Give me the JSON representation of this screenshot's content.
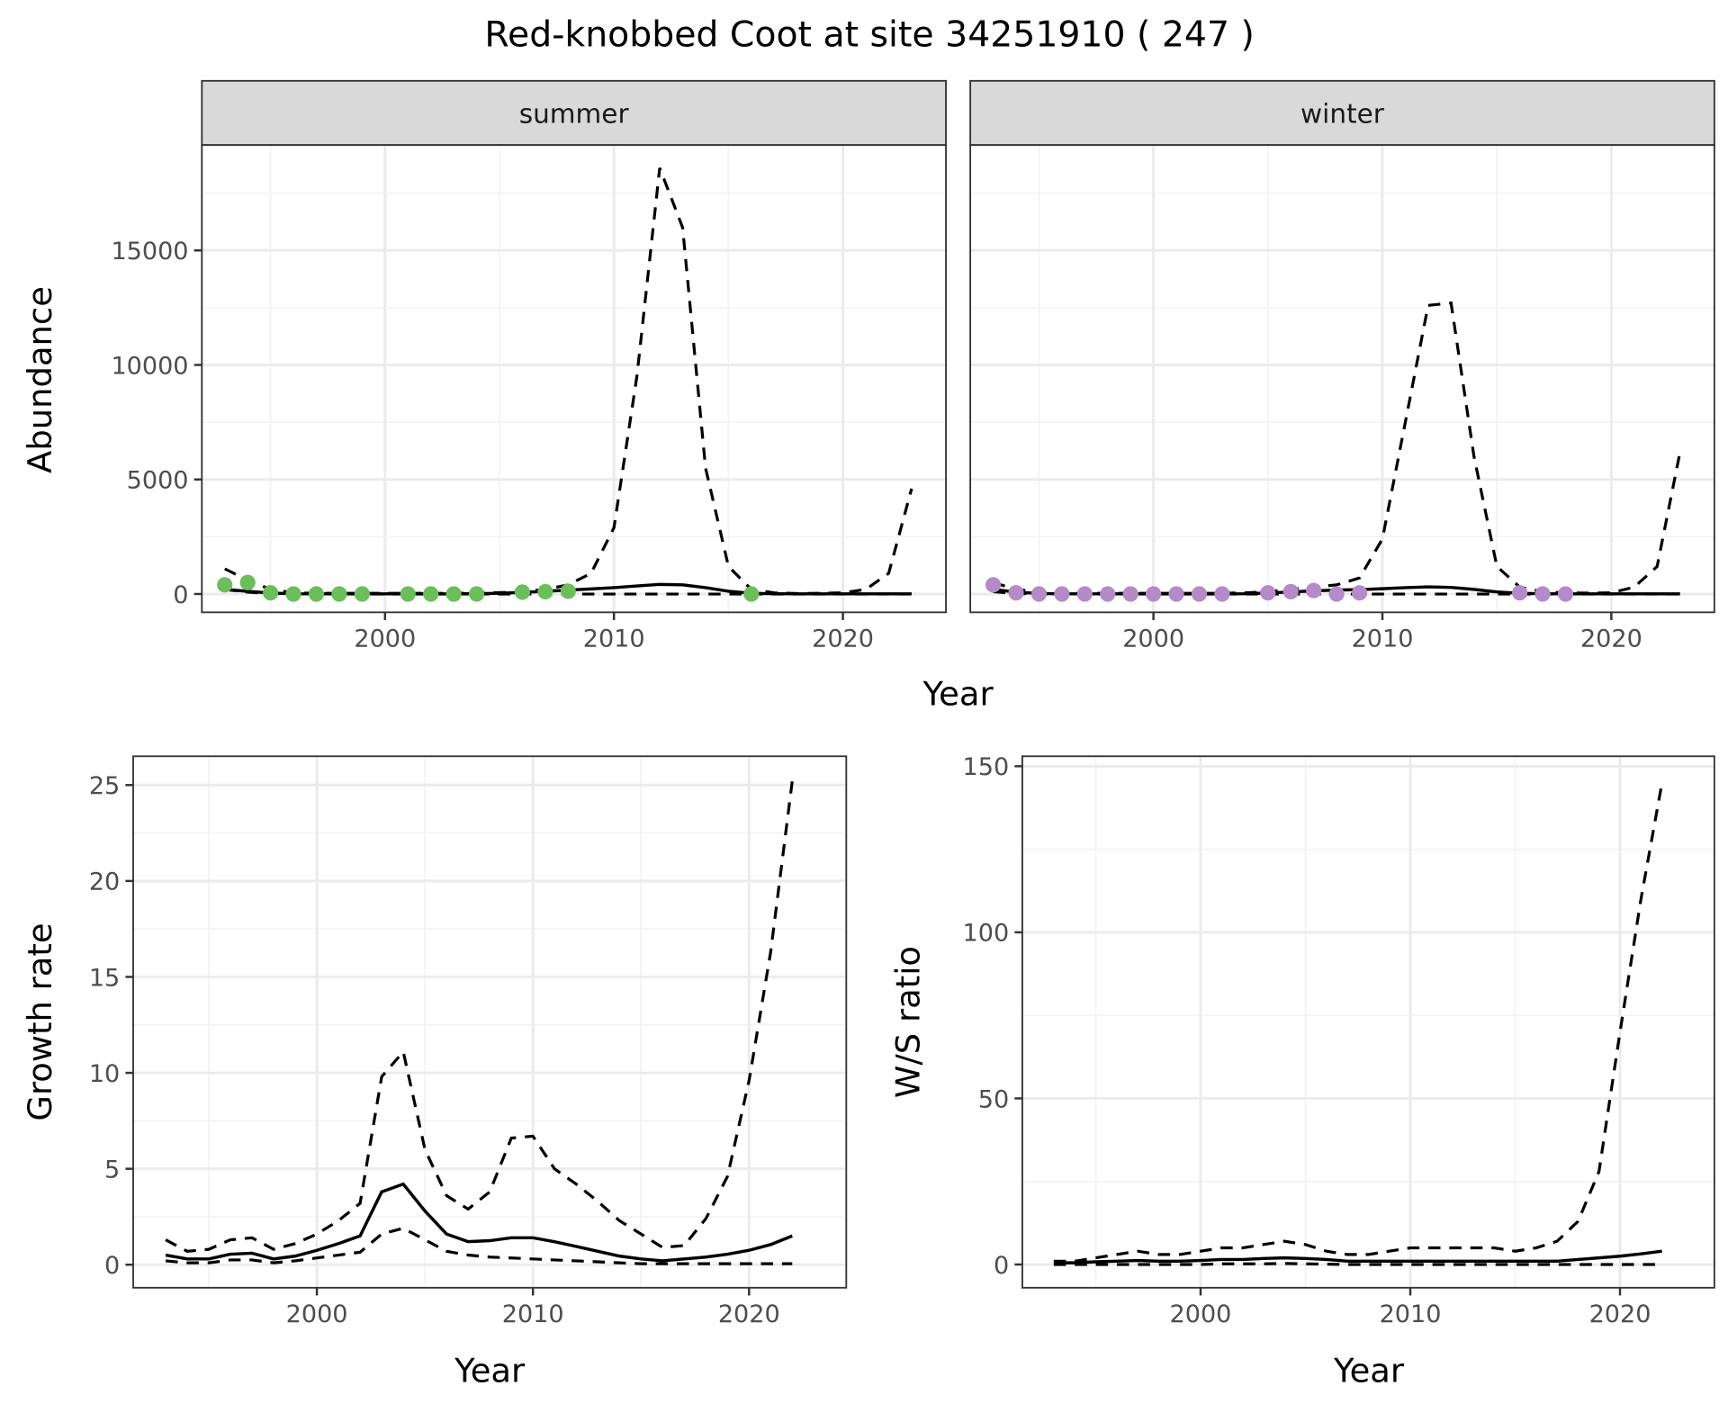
{
  "title": "Red-knobbed Coot at site 34251910 ( 247 )",
  "chart_data": [
    {
      "id": "abundance",
      "type": "line",
      "facets": [
        "summer",
        "winter"
      ],
      "xlabel": "Year",
      "ylabel": "Abundance",
      "xlim": [
        1992,
        2024.5
      ],
      "ylim": [
        -800,
        19600
      ],
      "xticks": [
        2000,
        2010,
        2020
      ],
      "yticks": [
        0,
        5000,
        10000,
        15000
      ],
      "panels": {
        "summer": {
          "point_color": "#6abf5a",
          "points": {
            "x": [
              1993,
              1994,
              1995,
              1996,
              1997,
              1998,
              1999,
              2001,
              2002,
              2003,
              2004,
              2006,
              2007,
              2008,
              2016
            ],
            "y": [
              400,
              500,
              50,
              0,
              0,
              0,
              0,
              0,
              0,
              0,
              0,
              80,
              100,
              120,
              0
            ]
          },
          "x": [
            1993,
            1994,
            1995,
            1996,
            1997,
            1998,
            1999,
            2000,
            2001,
            2002,
            2003,
            2004,
            2005,
            2006,
            2007,
            2008,
            2009,
            2010,
            2011,
            2012,
            2013,
            2014,
            2015,
            2016,
            2017,
            2018,
            2019,
            2020,
            2021,
            2022,
            2023
          ],
          "fit": [
            200,
            120,
            40,
            10,
            5,
            5,
            5,
            5,
            5,
            5,
            5,
            10,
            30,
            70,
            120,
            170,
            220,
            280,
            350,
            420,
            400,
            280,
            120,
            30,
            10,
            5,
            5,
            5,
            5,
            5,
            5
          ],
          "upper": [
            1100,
            600,
            200,
            50,
            30,
            30,
            30,
            30,
            30,
            30,
            30,
            40,
            60,
            100,
            200,
            400,
            900,
            2900,
            9500,
            18600,
            16000,
            5500,
            1200,
            200,
            50,
            20,
            30,
            50,
            200,
            900,
            4600
          ],
          "lower": [
            200,
            80,
            20,
            5,
            0,
            0,
            0,
            0,
            0,
            0,
            0,
            0,
            0,
            0,
            0,
            0,
            0,
            0,
            0,
            0,
            0,
            0,
            0,
            0,
            0,
            0,
            0,
            0,
            0,
            0,
            0
          ]
        },
        "winter": {
          "point_color": "#b48ac8",
          "points": {
            "x": [
              1993,
              1994,
              1995,
              1996,
              1997,
              1998,
              1999,
              2000,
              2001,
              2002,
              2003,
              2005,
              2006,
              2007,
              2008,
              2009,
              2016,
              2017,
              2018
            ],
            "y": [
              400,
              50,
              0,
              0,
              0,
              0,
              0,
              0,
              0,
              0,
              0,
              50,
              100,
              150,
              0,
              50,
              50,
              0,
              0
            ]
          },
          "x": [
            1993,
            1994,
            1995,
            1996,
            1997,
            1998,
            1999,
            2000,
            2001,
            2002,
            2003,
            2004,
            2005,
            2006,
            2007,
            2008,
            2009,
            2010,
            2011,
            2012,
            2013,
            2014,
            2015,
            2016,
            2017,
            2018,
            2019,
            2020,
            2021,
            2022,
            2023
          ],
          "fit": [
            200,
            80,
            20,
            5,
            5,
            5,
            5,
            5,
            5,
            5,
            5,
            10,
            40,
            90,
            140,
            170,
            190,
            230,
            280,
            310,
            290,
            200,
            90,
            30,
            10,
            5,
            5,
            5,
            5,
            5,
            5
          ],
          "upper": [
            500,
            200,
            80,
            30,
            30,
            30,
            30,
            30,
            30,
            30,
            30,
            50,
            100,
            200,
            300,
            400,
            700,
            2400,
            7500,
            12600,
            12700,
            6000,
            1200,
            300,
            100,
            50,
            40,
            50,
            300,
            1200,
            6200
          ],
          "lower": [
            100,
            20,
            5,
            0,
            0,
            0,
            0,
            0,
            0,
            0,
            0,
            0,
            0,
            0,
            0,
            0,
            0,
            0,
            0,
            0,
            0,
            0,
            0,
            0,
            0,
            0,
            0,
            0,
            0,
            0,
            0
          ]
        }
      }
    },
    {
      "id": "growth",
      "type": "line",
      "xlabel": "Year",
      "ylabel": "Growth rate",
      "xlim": [
        1991.5,
        2024.5
      ],
      "ylim": [
        -1.2,
        26.5
      ],
      "xticks": [
        2000,
        2010,
        2020
      ],
      "yticks": [
        0,
        5,
        10,
        15,
        20,
        25
      ],
      "x": [
        1993,
        1994,
        1995,
        1996,
        1997,
        1998,
        1999,
        2000,
        2001,
        2002,
        2003,
        2004,
        2005,
        2006,
        2007,
        2008,
        2009,
        2010,
        2011,
        2012,
        2013,
        2014,
        2015,
        2016,
        2017,
        2018,
        2019,
        2020,
        2021,
        2022
      ],
      "fit": [
        0.5,
        0.3,
        0.3,
        0.55,
        0.6,
        0.3,
        0.45,
        0.75,
        1.1,
        1.5,
        3.8,
        4.2,
        2.8,
        1.6,
        1.2,
        1.25,
        1.4,
        1.4,
        1.2,
        0.95,
        0.7,
        0.45,
        0.3,
        0.2,
        0.3,
        0.4,
        0.55,
        0.75,
        1.05,
        1.5
      ],
      "upper": [
        1.3,
        0.7,
        0.8,
        1.3,
        1.4,
        0.8,
        1.1,
        1.6,
        2.3,
        3.2,
        9.8,
        11.1,
        6.0,
        3.6,
        2.9,
        3.8,
        6.6,
        6.7,
        5.0,
        4.2,
        3.3,
        2.3,
        1.6,
        0.9,
        1.0,
        2.4,
        4.6,
        9.6,
        16.3,
        25.2
      ],
      "lower": [
        0.2,
        0.1,
        0.1,
        0.25,
        0.25,
        0.1,
        0.2,
        0.35,
        0.5,
        0.65,
        1.6,
        1.9,
        1.3,
        0.7,
        0.5,
        0.4,
        0.35,
        0.3,
        0.25,
        0.2,
        0.15,
        0.1,
        0.05,
        0.05,
        0.05,
        0.05,
        0.05,
        0.05,
        0.05,
        0.05
      ]
    },
    {
      "id": "ws_ratio",
      "type": "line",
      "xlabel": "Year",
      "ylabel": "W/S ratio",
      "xlim": [
        1991.5,
        2024.5
      ],
      "ylim": [
        -7,
        153
      ],
      "xticks": [
        2000,
        2010,
        2020
      ],
      "yticks": [
        0,
        50,
        100,
        150
      ],
      "x": [
        1993,
        1994,
        1995,
        1996,
        1997,
        1998,
        1999,
        2000,
        2001,
        2002,
        2003,
        2004,
        2005,
        2006,
        2007,
        2008,
        2009,
        2010,
        2011,
        2012,
        2013,
        2014,
        2015,
        2016,
        2017,
        2018,
        2019,
        2020,
        2021,
        2022
      ],
      "fit": [
        0.5,
        0.5,
        0.8,
        1,
        1.2,
        1,
        1,
        1.2,
        1.5,
        1.5,
        1.8,
        2,
        1.8,
        1.5,
        1,
        1,
        1,
        1,
        1,
        1,
        1,
        1,
        1,
        1,
        1,
        1.5,
        2,
        2.5,
        3.2,
        4
      ],
      "upper": [
        1,
        1,
        2,
        3,
        4,
        3,
        3,
        4,
        5,
        5,
        6,
        7,
        6,
        4,
        3,
        3,
        4,
        5,
        5,
        5,
        5,
        5,
        4,
        5,
        7,
        13,
        28,
        70,
        110,
        145
      ],
      "lower": [
        0,
        0,
        0,
        0,
        0,
        0,
        0,
        0,
        0.2,
        0.2,
        0.2,
        0.3,
        0.2,
        0.1,
        0,
        0,
        0,
        0,
        0,
        0,
        0,
        0,
        0,
        0,
        0,
        0,
        0,
        0,
        0,
        0
      ]
    }
  ]
}
